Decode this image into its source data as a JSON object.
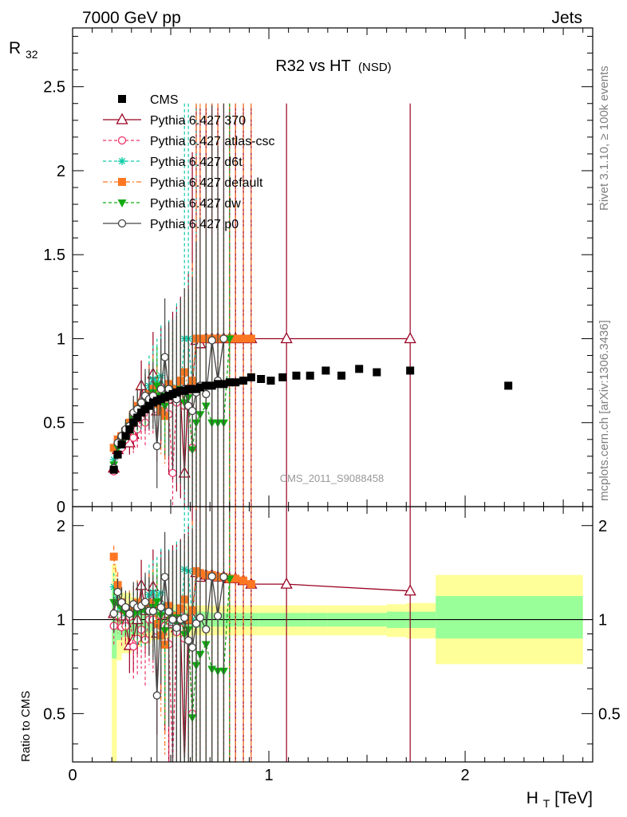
{
  "header": {
    "left": "7000 GeV pp",
    "right": "Jets",
    "title_main": "R32 vs HT",
    "title_sub": "(NSD)"
  },
  "side": {
    "top": "Rivet 3.1.10, ≥ 100k events",
    "bottom": "mcplots.cern.ch [arXiv:1306.3436]"
  },
  "analysis_label": "CMS_2011_S9088458",
  "axes": {
    "main_ylabel": "R",
    "main_ylabel_sub": "32",
    "ratio_ylabel": "Ratio to CMS",
    "xlabel": "H",
    "xlabel_sub": "T",
    "xlabel_unit": " [TeV]",
    "x_ticks": [
      "0",
      "1",
      "2"
    ],
    "main_y_ticks": [
      "0",
      "0.5",
      "1",
      "1.5",
      "2",
      "2.5"
    ],
    "ratio_y_ticks": [
      "0.5",
      "1",
      "2"
    ]
  },
  "colors": {
    "cms": "#000000",
    "p370": "#990022",
    "atlas": "#ee3366",
    "d6t": "#11ccaa",
    "default": "#ff7722",
    "dw": "#11aa11",
    "p0": "#444444",
    "band_yellow": "#ffff99",
    "band_green": "#99ff99"
  },
  "chart_data": {
    "type": "scatter",
    "xlabel": "H_T [TeV]",
    "ylabel": "R_32",
    "xlim": [
      0,
      2.65
    ],
    "ylim": [
      0,
      2.85
    ],
    "ratio_ylabel": "Ratio to CMS",
    "ratio_ylim": [
      0.35,
      2.3
    ],
    "ratio_scale": "log",
    "legend_position": "top-left",
    "cms": {
      "name": "CMS",
      "x": [
        0.21,
        0.23,
        0.25,
        0.27,
        0.29,
        0.31,
        0.33,
        0.35,
        0.37,
        0.39,
        0.41,
        0.43,
        0.45,
        0.47,
        0.49,
        0.51,
        0.53,
        0.55,
        0.57,
        0.59,
        0.61,
        0.63,
        0.65,
        0.68,
        0.71,
        0.74,
        0.77,
        0.8,
        0.83,
        0.87,
        0.91,
        0.96,
        1.01,
        1.07,
        1.14,
        1.21,
        1.29,
        1.37,
        1.46,
        1.55,
        1.72,
        2.22
      ],
      "y": [
        0.22,
        0.31,
        0.37,
        0.42,
        0.46,
        0.5,
        0.53,
        0.56,
        0.58,
        0.6,
        0.62,
        0.63,
        0.64,
        0.65,
        0.66,
        0.67,
        0.68,
        0.69,
        0.69,
        0.7,
        0.7,
        0.7,
        0.71,
        0.72,
        0.72,
        0.73,
        0.73,
        0.74,
        0.74,
        0.75,
        0.77,
        0.76,
        0.75,
        0.77,
        0.78,
        0.78,
        0.81,
        0.78,
        0.82,
        0.8,
        0.81,
        0.72
      ]
    },
    "band": {
      "edges": [
        0.2,
        0.225,
        0.25,
        0.3,
        0.35,
        0.4,
        0.45,
        0.5,
        0.55,
        0.6,
        0.65,
        0.7,
        0.75,
        0.8,
        0.85,
        0.9,
        0.95,
        1.0,
        1.1,
        1.2,
        1.3,
        1.4,
        1.5,
        1.6,
        1.7,
        1.85,
        2.6
      ],
      "green_lo": [
        0.75,
        0.86,
        0.88,
        0.9,
        0.91,
        0.92,
        0.93,
        0.93,
        0.94,
        0.94,
        0.94,
        0.95,
        0.95,
        0.95,
        0.95,
        0.95,
        0.95,
        0.95,
        0.95,
        0.95,
        0.95,
        0.95,
        0.95,
        0.94,
        0.94,
        0.87
      ],
      "green_hi": [
        1.25,
        1.14,
        1.12,
        1.1,
        1.09,
        1.08,
        1.07,
        1.07,
        1.06,
        1.06,
        1.06,
        1.05,
        1.05,
        1.05,
        1.05,
        1.05,
        1.05,
        1.05,
        1.05,
        1.05,
        1.05,
        1.05,
        1.05,
        1.06,
        1.06,
        1.19
      ],
      "yellow_lo": [
        0.34,
        0.74,
        0.78,
        0.82,
        0.84,
        0.86,
        0.87,
        0.88,
        0.88,
        0.89,
        0.89,
        0.89,
        0.89,
        0.89,
        0.89,
        0.89,
        0.89,
        0.89,
        0.89,
        0.89,
        0.89,
        0.89,
        0.89,
        0.88,
        0.87,
        0.72
      ],
      "yellow_hi": [
        1.5,
        1.26,
        1.22,
        1.18,
        1.16,
        1.14,
        1.13,
        1.12,
        1.12,
        1.11,
        1.11,
        1.11,
        1.11,
        1.11,
        1.11,
        1.11,
        1.11,
        1.11,
        1.11,
        1.11,
        1.11,
        1.11,
        1.11,
        1.12,
        1.13,
        1.39
      ]
    },
    "series": [
      {
        "name": "Pythia 6.427 370",
        "key": "p370",
        "marker": "triangle-open",
        "dash": "",
        "x": [
          0.21,
          0.23,
          0.25,
          0.27,
          0.29,
          0.31,
          0.33,
          0.35,
          0.37,
          0.39,
          0.41,
          0.43,
          0.45,
          0.47,
          0.49,
          0.51,
          0.53,
          0.55,
          0.57,
          0.59,
          0.61,
          0.63,
          0.65,
          0.68,
          0.71,
          0.74,
          0.77,
          0.8,
          0.83,
          0.87,
          0.91,
          1.09,
          1.72
        ],
        "y": [
          0.23,
          0.34,
          0.38,
          0.41,
          0.38,
          0.43,
          0.53,
          0.72,
          0.62,
          0.66,
          0.79,
          0.57,
          0.72,
          0.68,
          0.64,
          0.66,
          0.64,
          0.65,
          0.2,
          0.7,
          0.71,
          0.99,
          0.97,
          1.0,
          1.0,
          1.0,
          1.0,
          1.0,
          1.0,
          1.0,
          1.0,
          1.0,
          1.0
        ],
        "err": [
          0.03,
          0.04,
          0.05,
          0.06,
          0.07,
          0.09,
          0.12,
          0.15,
          0.17,
          0.2,
          0.25,
          0.3,
          0.35,
          0.4,
          0.45,
          0.5,
          0.55,
          0.6,
          0.65,
          0.7,
          1.4,
          1.4,
          1.4,
          1.4,
          1.4,
          1.4,
          1.4,
          1.4,
          1.4,
          1.4,
          1.4,
          1.4,
          1.4
        ]
      },
      {
        "name": "Pythia 6.427 atlas-csc",
        "key": "atlas",
        "marker": "circle-open",
        "dash": "4,3",
        "x": [
          0.21,
          0.23,
          0.25,
          0.27,
          0.29,
          0.31,
          0.33,
          0.35,
          0.37,
          0.39,
          0.41,
          0.43,
          0.45,
          0.47,
          0.49,
          0.51,
          0.53,
          0.55,
          0.57,
          0.59,
          0.61
        ],
        "y": [
          0.21,
          0.32,
          0.35,
          0.4,
          0.47,
          0.41,
          0.46,
          0.52,
          0.5,
          0.6,
          0.62,
          0.58,
          0.66,
          0.62,
          0.55,
          0.2,
          0.62,
          0.71,
          0.6,
          0.6,
          0.35
        ],
        "err": [
          0.03,
          0.04,
          0.05,
          0.06,
          0.07,
          0.09,
          0.11,
          0.13,
          0.15,
          0.17,
          0.2,
          0.23,
          0.26,
          0.3,
          0.33,
          0.36,
          0.4,
          0.45,
          0.5,
          0.6,
          0.7
        ]
      },
      {
        "name": "Pythia 6.427 d6t",
        "key": "d6t",
        "marker": "star",
        "dash": "4,3",
        "x": [
          0.21,
          0.23,
          0.25,
          0.27,
          0.29,
          0.31,
          0.33,
          0.35,
          0.37,
          0.39,
          0.41,
          0.43,
          0.45,
          0.47,
          0.49,
          0.51,
          0.53,
          0.55,
          0.57,
          0.59,
          0.61,
          0.63
        ],
        "y": [
          0.28,
          0.36,
          0.4,
          0.44,
          0.49,
          0.54,
          0.56,
          0.6,
          0.64,
          0.72,
          0.76,
          0.75,
          0.78,
          0.7,
          0.71,
          0.66,
          0.71,
          0.68,
          1.0,
          1.0,
          0.7,
          1.0
        ],
        "err": [
          0.03,
          0.04,
          0.05,
          0.06,
          0.08,
          0.1,
          0.12,
          0.14,
          0.16,
          0.18,
          0.2,
          0.25,
          0.3,
          0.35,
          0.4,
          0.45,
          0.5,
          0.55,
          1.4,
          1.4,
          0.7,
          1.4
        ]
      },
      {
        "name": "Pythia 6.427 default",
        "key": "default",
        "marker": "square",
        "dash": "6,3,2,3",
        "x": [
          0.21,
          0.23,
          0.25,
          0.27,
          0.29,
          0.31,
          0.33,
          0.35,
          0.37,
          0.39,
          0.41,
          0.43,
          0.45,
          0.47,
          0.49,
          0.51,
          0.53,
          0.55,
          0.57,
          0.59,
          0.61,
          0.63,
          0.65,
          0.68,
          0.71,
          0.74,
          0.77,
          0.8,
          0.83,
          0.87,
          0.91
        ],
        "y": [
          0.35,
          0.4,
          0.42,
          0.45,
          0.5,
          0.55,
          0.6,
          0.62,
          0.63,
          0.67,
          0.7,
          0.61,
          0.57,
          0.54,
          0.73,
          0.68,
          0.7,
          0.75,
          0.8,
          0.7,
          0.75,
          1.0,
          1.0,
          1.0,
          1.0,
          1.0,
          1.0,
          1.0,
          1.0,
          1.0,
          1.0
        ],
        "err": [
          0.03,
          0.04,
          0.05,
          0.06,
          0.07,
          0.09,
          0.11,
          0.13,
          0.15,
          0.17,
          0.2,
          0.23,
          0.26,
          0.3,
          0.33,
          0.36,
          0.4,
          0.45,
          0.5,
          0.6,
          0.7,
          1.4,
          1.4,
          1.4,
          1.4,
          1.4,
          1.4,
          1.4,
          1.4,
          1.4,
          1.4
        ]
      },
      {
        "name": "Pythia 6.427 dw",
        "key": "dw",
        "marker": "triangle-down",
        "dash": "4,3",
        "x": [
          0.21,
          0.23,
          0.25,
          0.27,
          0.29,
          0.31,
          0.33,
          0.35,
          0.37,
          0.39,
          0.41,
          0.43,
          0.45,
          0.47,
          0.49,
          0.51,
          0.53,
          0.55,
          0.57,
          0.59,
          0.61,
          0.63,
          0.65,
          0.68,
          0.71,
          0.74,
          0.77,
          0.8
        ],
        "y": [
          0.25,
          0.35,
          0.4,
          0.44,
          0.48,
          0.52,
          0.56,
          0.6,
          0.62,
          0.64,
          0.68,
          0.72,
          0.66,
          0.6,
          0.7,
          0.68,
          0.66,
          0.7,
          0.62,
          0.65,
          0.34,
          0.5,
          0.55,
          0.6,
          0.5,
          0.5,
          0.5,
          1.0
        ],
        "err": [
          0.03,
          0.04,
          0.05,
          0.06,
          0.07,
          0.09,
          0.11,
          0.13,
          0.15,
          0.17,
          0.2,
          0.23,
          0.26,
          0.3,
          0.33,
          0.36,
          0.4,
          0.45,
          0.5,
          0.6,
          0.7,
          0.8,
          0.9,
          1.0,
          1.1,
          1.2,
          1.3,
          1.4
        ]
      },
      {
        "name": "Pythia 6.427 p0",
        "key": "p0",
        "marker": "circle-open",
        "dash": "",
        "x": [
          0.21,
          0.23,
          0.25,
          0.27,
          0.29,
          0.31,
          0.33,
          0.35,
          0.37,
          0.39,
          0.41,
          0.43,
          0.45,
          0.47,
          0.49,
          0.51,
          0.53,
          0.55,
          0.57,
          0.59,
          0.61,
          0.63,
          0.65,
          0.68,
          0.71,
          0.74,
          0.77
        ],
        "y": [
          0.23,
          0.38,
          0.42,
          0.46,
          0.48,
          0.56,
          0.58,
          0.62,
          0.66,
          0.64,
          0.66,
          0.36,
          0.7,
          0.89,
          0.7,
          0.67,
          0.64,
          0.69,
          0.7,
          0.6,
          0.57,
          0.68,
          0.72,
          0.67,
          0.99,
          0.75,
          1.0
        ],
        "err": [
          0.03,
          0.04,
          0.05,
          0.06,
          0.08,
          0.1,
          0.12,
          0.14,
          0.16,
          0.18,
          0.2,
          0.25,
          0.3,
          0.35,
          0.4,
          0.45,
          0.5,
          0.55,
          0.6,
          0.7,
          0.8,
          0.9,
          1.0,
          1.4,
          1.4,
          1.4,
          1.4
        ]
      }
    ]
  }
}
